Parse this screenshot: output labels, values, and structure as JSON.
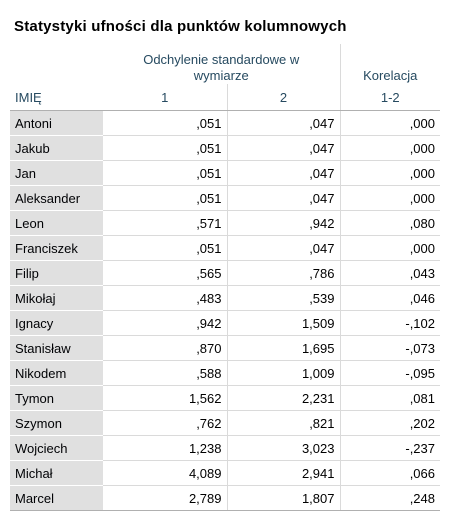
{
  "title": "Statystyki ufności dla punktów kolumnowych",
  "table": {
    "group_header": "Odchylenie standardowe w wymiarze",
    "corr_header": "Korelacja",
    "columns": [
      "IMIĘ",
      "1",
      "2",
      "1-2"
    ],
    "rows": [
      [
        "Antoni",
        ",051",
        ",047",
        ",000"
      ],
      [
        "Jakub",
        ",051",
        ",047",
        ",000"
      ],
      [
        "Jan",
        ",051",
        ",047",
        ",000"
      ],
      [
        "Aleksander",
        ",051",
        ",047",
        ",000"
      ],
      [
        "Leon",
        ",571",
        ",942",
        ",080"
      ],
      [
        "Franciszek",
        ",051",
        ",047",
        ",000"
      ],
      [
        "Filip",
        ",565",
        ",786",
        ",043"
      ],
      [
        "Mikołaj",
        ",483",
        ",539",
        ",046"
      ],
      [
        "Ignacy",
        ",942",
        "1,509",
        "-,102"
      ],
      [
        "Stanisław",
        ",870",
        "1,695",
        "-,073"
      ],
      [
        "Nikodem",
        ",588",
        "1,009",
        "-,095"
      ],
      [
        "Tymon",
        "1,562",
        "2,231",
        ",081"
      ],
      [
        "Szymon",
        ",762",
        ",821",
        ",202"
      ],
      [
        "Wojciech",
        "1,238",
        "3,023",
        "-,237"
      ],
      [
        "Michał",
        "4,089",
        "2,941",
        ",066"
      ],
      [
        "Marcel",
        "2,789",
        "1,807",
        ",248"
      ]
    ]
  }
}
